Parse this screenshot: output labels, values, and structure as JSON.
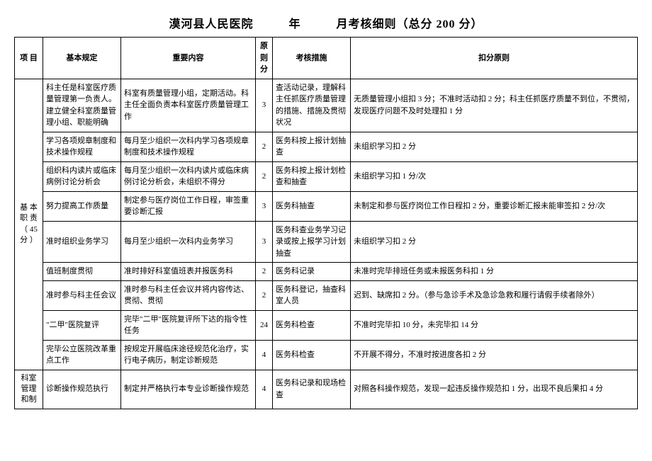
{
  "title_parts": {
    "hospital": "漠河县人民医院",
    "year_label": "年",
    "month_label": "月考核细则（总分 200 分）"
  },
  "headers": {
    "project": "项 目",
    "basic": "基本规定",
    "content": "重要内容",
    "score": "原则分",
    "measure": "考核措施",
    "deduct": "扣分原则"
  },
  "section1": {
    "name": "基 本 职 责 （ 45 分 ）",
    "rows": [
      {
        "basic": "科主任是科室医疗质量管理第一负责人。建立健全科室质量管理小组、职能明确",
        "content": "科室有质量管理小组，定期活动。科主任全面负责本科室医疗质量管理工作",
        "score": "3",
        "measure": "查活动记录，理解科主任抓医疗质量管理的措施、措施及贯彻状况",
        "deduct": "无质量管理小组扣 3 分；不准时活动扣 2 分；科主任抓医疗质量不到位，不贯彻，发现医疗问题不及时处理扣 1 分"
      },
      {
        "basic": "学习各项规章制度和技术操作规程",
        "content": "每月至少组织一次科内学习各项规章制度和技术操作规程",
        "score": "2",
        "measure": "医务科按上报计划抽查",
        "deduct": "未组织学习扣 2 分"
      },
      {
        "basic": "组织科内读片或临床病例讨论分析会",
        "content": "每月至少组织一次科内读片或临床病例讨论分析会，未组织不得分",
        "score": "2",
        "measure": "医务科按上报计划检查和抽查",
        "deduct": "未组织学习扣 1 分/次"
      },
      {
        "basic": "努力提高工作质量",
        "content": "制定参与医疗岗位工作日程，审签重要诊断汇报",
        "score": "3",
        "measure": "医务科抽查",
        "deduct": "未制定和参与医疗岗位工作日程扣 2 分，重要诊断汇报未能审签扣 2 分/次"
      },
      {
        "basic": "准时组织业务学习",
        "content": "每月至少组织一次科内业务学习",
        "score": "3",
        "measure": "医务科查业务学习记录或按上报学习计划抽查",
        "deduct": "未组织学习扣 2 分"
      },
      {
        "basic": "值班制度贯彻",
        "content": "准时排好科室值班表并报医务科",
        "score": "2",
        "measure": "医务科记录",
        "deduct": "未准时完毕排班任务或未报医务科扣 1 分"
      },
      {
        "basic": "准时参与科主任会议",
        "content": "准时参与科主任会议并将内容传达、贯彻、贯彻",
        "score": "2",
        "measure": "医务科登记，抽查科室人员",
        "deduct": "迟到、缺席扣 2 分。（参与急诊手术及急诊急救和履行请假手续者除外）"
      },
      {
        "basic": "\"二甲\"医院复评",
        "content": "完毕\"二甲\"医院复评所下达的指令性任务",
        "score": "24",
        "measure": "医务科检查",
        "deduct": "不准时完毕扣 10 分，未完毕扣 14 分"
      },
      {
        "basic": "完毕公立医院改革重点工作",
        "content": "按规定开展临床途径规范化治疗，实行电子病历，制定诊断规范",
        "score": "4",
        "measure": "医务科检查",
        "deduct": "不开展不得分，不准时按进度各扣 2 分"
      }
    ]
  },
  "section2": {
    "name": "科室管理和制",
    "rows": [
      {
        "basic": "诊断操作规范执行",
        "content": "制定并严格执行本专业诊断操作规范",
        "score": "4",
        "measure": "医务科记录和现场检查",
        "deduct": "对照各科操作规范，发现一起违反操作规范扣 1 分，出现不良后果扣 4 分"
      }
    ]
  }
}
